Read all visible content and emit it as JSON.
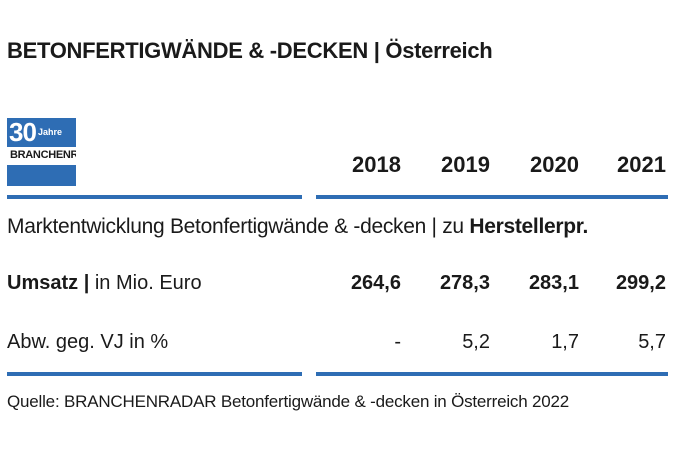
{
  "title": "BETONFERTIGWÄNDE & -DECKEN | Österreich",
  "logo": {
    "number": "30",
    "label": "Jahre",
    "brand": "BRANCHENRADAR"
  },
  "subtitle": {
    "text": "Marktentwicklung Betonfertigwände & -decken | zu ",
    "bold": "Herstellerpr."
  },
  "chart_data": {
    "type": "table",
    "columns": [
      "2018",
      "2019",
      "2020",
      "2021"
    ],
    "rows": [
      {
        "label_bold": "Umsatz |",
        "label": " in Mio. Euro",
        "values": [
          "264,6",
          "278,3",
          "283,1",
          "299,2"
        ]
      },
      {
        "label_bold": "",
        "label": "Abw. geg. VJ in %",
        "values": [
          "-",
          "5,2",
          "1,7",
          "5,7"
        ]
      }
    ]
  },
  "source": "Quelle: BRANCHENRADAR Betonfertigwände & -decken in Österreich 2022",
  "colors": {
    "accent": "#2e6db4"
  }
}
